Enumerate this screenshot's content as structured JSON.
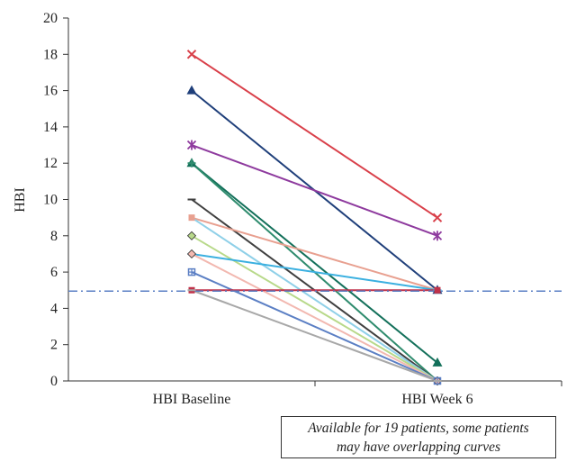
{
  "chart_data": {
    "type": "line",
    "ylabel": "HBI",
    "categories": [
      "HBI Baseline",
      "HBI Week 6"
    ],
    "ylim": [
      0,
      20
    ],
    "y_ticks": [
      0,
      2,
      4,
      6,
      8,
      10,
      12,
      14,
      16,
      18,
      20
    ],
    "grid": false,
    "reference_line": {
      "y": 4.95,
      "style": "dash-dot",
      "color": "#5B7FC4"
    },
    "note": [
      "Available for 19 patients, some patients",
      "may have overlapping curves"
    ],
    "series": [
      {
        "values": [
          18,
          9
        ],
        "color": "#D9404A",
        "marker": "x"
      },
      {
        "values": [
          16,
          5
        ],
        "color": "#1F3F7A",
        "marker": "triangle"
      },
      {
        "values": [
          13,
          8
        ],
        "color": "#8E3A9E",
        "marker": "star"
      },
      {
        "values": [
          12,
          1
        ],
        "color": "#13705A",
        "marker": "triangle"
      },
      {
        "values": [
          12,
          0
        ],
        "color": "#2F8C6E",
        "marker": "plus"
      },
      {
        "values": [
          10,
          0
        ],
        "color": "#404040",
        "marker": "dash"
      },
      {
        "values": [
          9,
          5
        ],
        "color": "#E8A090",
        "marker": "square"
      },
      {
        "values": [
          9,
          0
        ],
        "color": "#8FD0E8",
        "marker": "none"
      },
      {
        "values": [
          8,
          0
        ],
        "color": "#B8D98A",
        "marker": "diamond"
      },
      {
        "values": [
          7,
          5
        ],
        "color": "#3BB0E0",
        "marker": "dash"
      },
      {
        "values": [
          7,
          0
        ],
        "color": "#F2B8B0",
        "marker": "diamond"
      },
      {
        "values": [
          6,
          0
        ],
        "color": "#5B7FC4",
        "marker": "cross"
      },
      {
        "values": [
          5,
          5
        ],
        "color": "#C0324A",
        "marker": "square"
      },
      {
        "values": [
          5,
          0
        ],
        "color": "#A8A8A8",
        "marker": "dash"
      }
    ]
  }
}
